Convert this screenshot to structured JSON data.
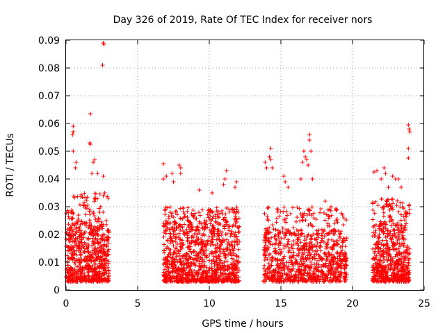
{
  "chart_data": {
    "type": "scatter",
    "title": "Day 326 of 2019, Rate Of TEC Index for receiver nors",
    "xlabel": "GPS time / hours",
    "ylabel": "ROTI / TECUs",
    "xlim": [
      0,
      25
    ],
    "ylim": [
      0,
      0.09
    ],
    "x_ticks": [
      0,
      5,
      10,
      15,
      20,
      25
    ],
    "x_tick_labels": [
      "0",
      "5",
      "10",
      "15",
      "20",
      "25"
    ],
    "y_ticks": [
      0,
      0.01,
      0.02,
      0.03,
      0.04,
      0.05,
      0.06,
      0.07,
      0.08,
      0.09
    ],
    "y_tick_labels": [
      "0",
      "0.01",
      "0.02",
      "0.03",
      "0.04",
      "0.05",
      "0.06",
      "0.07",
      "0.08",
      "0.09"
    ],
    "grid": true,
    "marker": "+",
    "marker_color": "#ff0000",
    "clusters": [
      {
        "x_start": 0.0,
        "x_end": 3.0,
        "y_min": 0.003,
        "y_typ": 0.025,
        "y_max": 0.035,
        "density": 700
      },
      {
        "x_start": 6.8,
        "x_end": 12.1,
        "y_min": 0.003,
        "y_typ": 0.025,
        "y_max": 0.03,
        "density": 1100
      },
      {
        "x_start": 13.8,
        "x_end": 19.6,
        "y_min": 0.003,
        "y_typ": 0.022,
        "y_max": 0.03,
        "density": 900
      },
      {
        "x_start": 21.4,
        "x_end": 24.0,
        "y_min": 0.003,
        "y_typ": 0.025,
        "y_max": 0.033,
        "density": 600
      }
    ],
    "outliers": [
      {
        "x": 2.6,
        "y": 0.089
      },
      {
        "x": 2.65,
        "y": 0.0885
      },
      {
        "x": 2.55,
        "y": 0.081
      },
      {
        "x": 1.7,
        "y": 0.0635
      },
      {
        "x": 0.5,
        "y": 0.059
      },
      {
        "x": 0.5,
        "y": 0.057
      },
      {
        "x": 0.45,
        "y": 0.056
      },
      {
        "x": 0.5,
        "y": 0.05
      },
      {
        "x": 1.65,
        "y": 0.053
      },
      {
        "x": 1.7,
        "y": 0.0525
      },
      {
        "x": 2.0,
        "y": 0.047
      },
      {
        "x": 1.9,
        "y": 0.046
      },
      {
        "x": 0.7,
        "y": 0.046
      },
      {
        "x": 0.65,
        "y": 0.044
      },
      {
        "x": 1.8,
        "y": 0.042
      },
      {
        "x": 2.2,
        "y": 0.042
      },
      {
        "x": 2.6,
        "y": 0.041
      },
      {
        "x": 2.7,
        "y": 0.035
      },
      {
        "x": 2.6,
        "y": 0.034
      },
      {
        "x": 6.8,
        "y": 0.0455
      },
      {
        "x": 7.4,
        "y": 0.042
      },
      {
        "x": 7.5,
        "y": 0.039
      },
      {
        "x": 7.9,
        "y": 0.045
      },
      {
        "x": 8.0,
        "y": 0.042
      },
      {
        "x": 8.0,
        "y": 0.044
      },
      {
        "x": 6.8,
        "y": 0.04
      },
      {
        "x": 7.0,
        "y": 0.041
      },
      {
        "x": 11.2,
        "y": 0.043
      },
      {
        "x": 11.1,
        "y": 0.04
      },
      {
        "x": 11.0,
        "y": 0.038
      },
      {
        "x": 11.9,
        "y": 0.039
      },
      {
        "x": 11.8,
        "y": 0.037
      },
      {
        "x": 9.3,
        "y": 0.036
      },
      {
        "x": 10.2,
        "y": 0.035
      },
      {
        "x": 14.3,
        "y": 0.051
      },
      {
        "x": 14.2,
        "y": 0.048
      },
      {
        "x": 14.3,
        "y": 0.047
      },
      {
        "x": 13.9,
        "y": 0.046
      },
      {
        "x": 14.0,
        "y": 0.044
      },
      {
        "x": 14.4,
        "y": 0.044
      },
      {
        "x": 15.2,
        "y": 0.041
      },
      {
        "x": 15.3,
        "y": 0.039
      },
      {
        "x": 15.5,
        "y": 0.037
      },
      {
        "x": 16.6,
        "y": 0.05
      },
      {
        "x": 16.7,
        "y": 0.048
      },
      {
        "x": 16.8,
        "y": 0.047
      },
      {
        "x": 16.5,
        "y": 0.046
      },
      {
        "x": 17.0,
        "y": 0.056
      },
      {
        "x": 17.0,
        "y": 0.054
      },
      {
        "x": 17.1,
        "y": 0.05
      },
      {
        "x": 16.9,
        "y": 0.045
      },
      {
        "x": 17.2,
        "y": 0.04
      },
      {
        "x": 16.4,
        "y": 0.04
      },
      {
        "x": 18.1,
        "y": 0.032
      },
      {
        "x": 18.5,
        "y": 0.03
      },
      {
        "x": 18.9,
        "y": 0.029
      },
      {
        "x": 19.4,
        "y": 0.026
      },
      {
        "x": 19.3,
        "y": 0.027
      },
      {
        "x": 21.5,
        "y": 0.0425
      },
      {
        "x": 21.7,
        "y": 0.043
      },
      {
        "x": 22.0,
        "y": 0.04
      },
      {
        "x": 22.2,
        "y": 0.044
      },
      {
        "x": 22.3,
        "y": 0.042
      },
      {
        "x": 22.5,
        "y": 0.037
      },
      {
        "x": 22.8,
        "y": 0.041
      },
      {
        "x": 23.0,
        "y": 0.04
      },
      {
        "x": 23.2,
        "y": 0.04
      },
      {
        "x": 23.4,
        "y": 0.037
      },
      {
        "x": 23.9,
        "y": 0.0595
      },
      {
        "x": 23.95,
        "y": 0.058
      },
      {
        "x": 24.0,
        "y": 0.057
      },
      {
        "x": 23.9,
        "y": 0.051
      },
      {
        "x": 23.9,
        "y": 0.0475
      },
      {
        "x": 24.0,
        "y": 0.029
      }
    ]
  }
}
